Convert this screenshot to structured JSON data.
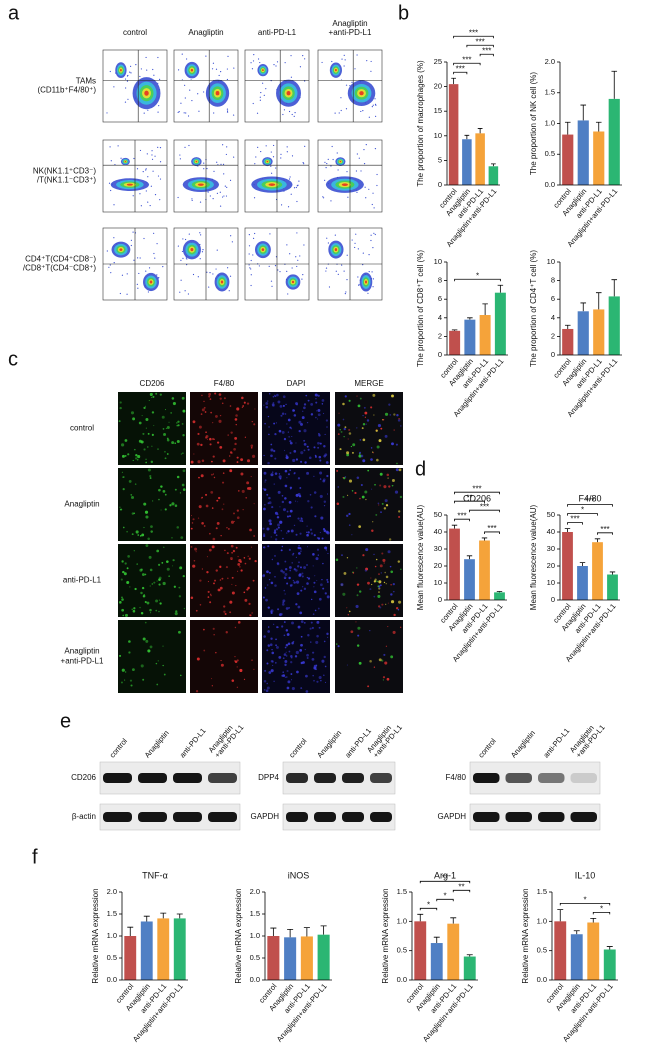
{
  "figure": {
    "panel_labels": [
      "a",
      "b",
      "c",
      "d",
      "e",
      "f"
    ],
    "flow": {
      "columns": [
        [
          "control"
        ],
        [
          "Anagliptin"
        ],
        [
          "anti-PD-L1"
        ],
        [
          "Anagliptin",
          "+anti-PD-L1"
        ]
      ],
      "rows": [
        [
          "TAMs",
          "(CD11b⁺F4/80⁺)"
        ],
        [
          "NK(NK1.1⁺CD3⁻)",
          "/T(NK1.1⁻CD3⁺)"
        ],
        [
          "CD4⁺T(CD4⁺CD8⁻)",
          "/CD8⁺T(CD4⁻CD8⁺)"
        ]
      ]
    },
    "if": {
      "columns": [
        "CD206",
        "F4/80",
        "DAPI",
        "MERGE"
      ],
      "rows": [
        [
          "control"
        ],
        [
          "Anagliptin"
        ],
        [
          "anti-PD-L1"
        ],
        [
          "Anagliptin",
          "+anti-PD-L1"
        ]
      ]
    },
    "blots": [
      {
        "lanes": [
          [
            "control"
          ],
          [
            "Anagliptin"
          ],
          [
            "anti-PD-L1"
          ],
          [
            "Anagliptin",
            "+anti-PD-L1"
          ]
        ],
        "targets": [
          "CD206",
          "β-actin"
        ]
      },
      {
        "lanes": [
          [
            "control"
          ],
          [
            "Anagliptin"
          ],
          [
            "anti-PD-L1"
          ],
          [
            "Anagliptin",
            "+anti-PD-L1"
          ]
        ],
        "targets": [
          "DPP4",
          "GAPDH"
        ]
      },
      {
        "lanes": [
          [
            "control"
          ],
          [
            "Anagliptin"
          ],
          [
            "anti-PD-L1"
          ],
          [
            "Anagliptin",
            "+anti-PD-L1"
          ]
        ],
        "targets": [
          "F4/80",
          "GAPDH"
        ]
      }
    ]
  },
  "chart_data": [
    {
      "type": "bar",
      "y_label": "The proportion of macrophages (%)",
      "categories": [
        "control",
        "Anagliptin",
        "anti-PD-L1",
        "Anagliptin+anti-PD-L1"
      ],
      "values": [
        20.5,
        9.3,
        10.5,
        3.8
      ],
      "errors": [
        1.2,
        0.8,
        1.0,
        0.5
      ],
      "colors": [
        "#c0504d",
        "#4f7fc4",
        "#f5a33a",
        "#2bb673"
      ],
      "ylim": [
        0,
        25
      ],
      "yticks": [
        0,
        5,
        10,
        15,
        20,
        25
      ],
      "significance": [
        {
          "label": "***",
          "pair": [
            0,
            1
          ]
        },
        {
          "label": "***",
          "pair": [
            0,
            2
          ]
        },
        {
          "label": "***",
          "pair": [
            2,
            3
          ]
        },
        {
          "label": "***",
          "pair": [
            1,
            3
          ]
        },
        {
          "label": "***",
          "pair": [
            0,
            3
          ]
        }
      ]
    },
    {
      "type": "bar",
      "y_label": "The proportion of NK cell (%)",
      "categories": [
        "control",
        "Anagliptin",
        "anti-PD-L1",
        "Anagliptin+anti-PD-L1"
      ],
      "values": [
        0.82,
        1.05,
        0.87,
        1.4
      ],
      "errors": [
        0.2,
        0.25,
        0.15,
        0.45
      ],
      "colors": [
        "#c0504d",
        "#4f7fc4",
        "#f5a33a",
        "#2bb673"
      ],
      "ylim": [
        0,
        2
      ],
      "yticks": [
        {
          "value": 0,
          "label": "0.0"
        },
        0.5,
        {
          "value": 1,
          "label": "1.0"
        },
        1.5,
        {
          "value": 2,
          "label": "2.0"
        }
      ],
      "significance": []
    },
    {
      "type": "bar",
      "y_label": "The proportion of CD8⁺T cell (%)",
      "categories": [
        "control",
        "Anagliptin",
        "anti-PD-L1",
        "Anagliptin+anti-PD-L1"
      ],
      "values": [
        2.6,
        3.8,
        4.3,
        6.7
      ],
      "errors": [
        0.1,
        0.2,
        1.2,
        0.8
      ],
      "colors": [
        "#c0504d",
        "#4f7fc4",
        "#f5a33a",
        "#2bb673"
      ],
      "ylim": [
        0,
        10
      ],
      "yticks": [
        0,
        2,
        4,
        6,
        8,
        10
      ],
      "significance": [
        {
          "label": "*",
          "pair": [
            0,
            3
          ]
        }
      ]
    },
    {
      "type": "bar",
      "y_label": "The proportion of CD4⁺T cell (%)",
      "categories": [
        "control",
        "Anagliptin",
        "anti-PD-L1",
        "Anagliptin+anti-PD-L1"
      ],
      "values": [
        2.8,
        4.7,
        4.9,
        6.3
      ],
      "errors": [
        0.4,
        0.9,
        1.8,
        1.8
      ],
      "colors": [
        "#c0504d",
        "#4f7fc4",
        "#f5a33a",
        "#2bb673"
      ],
      "ylim": [
        0,
        10
      ],
      "yticks": [
        0,
        2,
        4,
        6,
        8,
        10
      ],
      "significance": []
    },
    {
      "type": "bar",
      "title": "CD206",
      "y_label": "Mean fluorescence value(AU)",
      "categories": [
        "control",
        "Anagliptin",
        "anti-PD-L1",
        "Anagliptin+anti-PD-L1"
      ],
      "values": [
        42,
        24,
        35,
        4.5
      ],
      "errors": [
        2,
        2,
        1.5,
        0.5
      ],
      "colors": [
        "#c0504d",
        "#4f7fc4",
        "#f5a33a",
        "#2bb673"
      ],
      "ylim": [
        0,
        50
      ],
      "yticks": [
        0,
        10,
        20,
        30,
        40,
        50
      ],
      "significance": [
        {
          "label": "***",
          "pair": [
            0,
            1
          ]
        },
        {
          "label": "***",
          "pair": [
            2,
            3
          ]
        },
        {
          "label": "***",
          "pair": [
            1,
            3
          ]
        },
        {
          "label": "**",
          "pair": [
            0,
            2
          ]
        },
        {
          "label": "***",
          "pair": [
            0,
            3
          ]
        }
      ]
    },
    {
      "type": "bar",
      "title": "F4/80",
      "y_label": "Mean fluorescence value(AU)",
      "categories": [
        "control",
        "Anagliptin",
        "anti-PD-L1",
        "Anagliptin+anti-PD-L1"
      ],
      "values": [
        40,
        20,
        34,
        15
      ],
      "errors": [
        2,
        2,
        2,
        1.5
      ],
      "colors": [
        "#c0504d",
        "#4f7fc4",
        "#f5a33a",
        "#2bb673"
      ],
      "ylim": [
        0,
        50
      ],
      "yticks": [
        0,
        10,
        20,
        30,
        40,
        50
      ],
      "significance": [
        {
          "label": "***",
          "pair": [
            0,
            1
          ]
        },
        {
          "label": "***",
          "pair": [
            2,
            3
          ]
        },
        {
          "label": "*",
          "pair": [
            0,
            2
          ]
        },
        {
          "label": "***",
          "pair": [
            0,
            3
          ]
        }
      ]
    },
    {
      "type": "bar",
      "title": "TNF-α",
      "y_label": "Relative mRNA expression",
      "categories": [
        "control",
        "Anagliptin",
        "anti-PD-L1",
        "Anagliptin+anti-PD-L1"
      ],
      "values": [
        1.0,
        1.33,
        1.4,
        1.4
      ],
      "errors": [
        0.2,
        0.12,
        0.12,
        0.1
      ],
      "colors": [
        "#c0504d",
        "#4f7fc4",
        "#f5a33a",
        "#2bb673"
      ],
      "ylim": [
        0,
        2
      ],
      "yticks": [
        {
          "value": 0,
          "label": "0.0"
        },
        0.5,
        {
          "value": 1,
          "label": "1.0"
        },
        1.5,
        {
          "value": 2,
          "label": "2.0"
        }
      ],
      "significance": []
    },
    {
      "type": "bar",
      "title": "iNOS",
      "y_label": "Relative mRNA expression",
      "categories": [
        "control",
        "Anagliptin",
        "anti-PD-L1",
        "Anagliptin+anti-PD-L1"
      ],
      "values": [
        1.0,
        0.97,
        0.99,
        1.03
      ],
      "errors": [
        0.18,
        0.18,
        0.2,
        0.2
      ],
      "colors": [
        "#c0504d",
        "#4f7fc4",
        "#f5a33a",
        "#2bb673"
      ],
      "ylim": [
        0,
        2
      ],
      "yticks": [
        {
          "value": 0,
          "label": "0.0"
        },
        0.5,
        {
          "value": 1,
          "label": "1.0"
        },
        1.5,
        {
          "value": 2,
          "label": "2.0"
        }
      ],
      "significance": []
    },
    {
      "type": "bar",
      "title": "Arg-1",
      "y_label": "Relative mRNA expression",
      "categories": [
        "control",
        "Anagliptin",
        "anti-PD-L1",
        "Anagliptin+anti-PD-L1"
      ],
      "values": [
        1.0,
        0.63,
        0.96,
        0.4
      ],
      "errors": [
        0.12,
        0.1,
        0.1,
        0.03
      ],
      "colors": [
        "#c0504d",
        "#4f7fc4",
        "#f5a33a",
        "#2bb673"
      ],
      "ylim": [
        0,
        1.5
      ],
      "yticks": [
        {
          "value": 0,
          "label": "0.0"
        },
        0.5,
        {
          "value": 1,
          "label": "1.0"
        },
        1.5
      ],
      "significance": [
        {
          "label": "*",
          "pair": [
            0,
            1
          ]
        },
        {
          "label": "*",
          "pair": [
            1,
            2
          ]
        },
        {
          "label": "**",
          "pair": [
            2,
            3
          ]
        },
        {
          "label": "**",
          "pair": [
            0,
            3
          ]
        }
      ]
    },
    {
      "type": "bar",
      "title": "IL-10",
      "y_label": "Relative mRNA expression",
      "categories": [
        "control",
        "Anagliptin",
        "anti-PD-L1",
        "Anagliptin+anti-PD-L1"
      ],
      "values": [
        1.0,
        0.78,
        0.98,
        0.52
      ],
      "errors": [
        0.2,
        0.06,
        0.07,
        0.05
      ],
      "colors": [
        "#c0504d",
        "#4f7fc4",
        "#f5a33a",
        "#2bb673"
      ],
      "ylim": [
        0,
        1.5
      ],
      "yticks": [
        {
          "value": 0,
          "label": "0.0"
        },
        0.5,
        {
          "value": 1,
          "label": "1.0"
        },
        1.5
      ],
      "significance": [
        {
          "label": "*",
          "pair": [
            2,
            3
          ]
        },
        {
          "label": "*",
          "pair": [
            0,
            3
          ]
        }
      ]
    }
  ]
}
